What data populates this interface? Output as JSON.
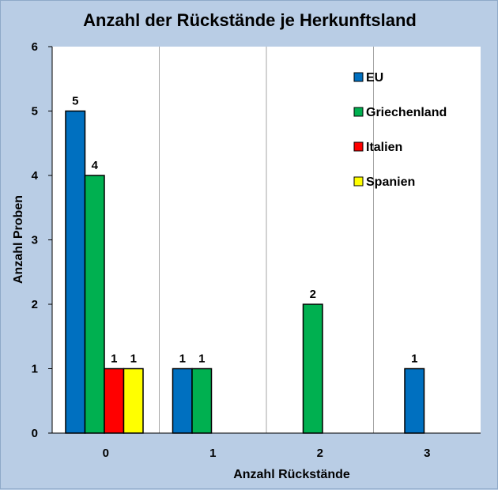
{
  "chart_data": {
    "type": "bar",
    "title": "Anzahl der Rückstände je Herkunftsland",
    "xlabel": "Anzahl Rückstände",
    "ylabel": "Anzahl Proben",
    "categories": [
      "0",
      "1",
      "2",
      "3"
    ],
    "ylim": [
      0,
      6
    ],
    "yticks": [
      0,
      1,
      2,
      3,
      4,
      5,
      6
    ],
    "grid": "vertical lines between categories",
    "legend_position": "top-right",
    "series": [
      {
        "name": "EU",
        "color": "#0070c0",
        "values": [
          5,
          1,
          null,
          1
        ]
      },
      {
        "name": "Griechenland",
        "color": "#00b050",
        "values": [
          4,
          1,
          2,
          null
        ]
      },
      {
        "name": "Italien",
        "color": "#ff0000",
        "values": [
          1,
          null,
          null,
          null
        ]
      },
      {
        "name": "Spanien",
        "color": "#ffff00",
        "values": [
          1,
          null,
          null,
          null
        ]
      }
    ],
    "bar_layout": [
      [
        "EU",
        "Griechenland",
        "Italien",
        "Spanien"
      ],
      [
        "EU",
        "Griechenland"
      ],
      [
        "Griechenland"
      ],
      [
        "EU"
      ]
    ]
  }
}
